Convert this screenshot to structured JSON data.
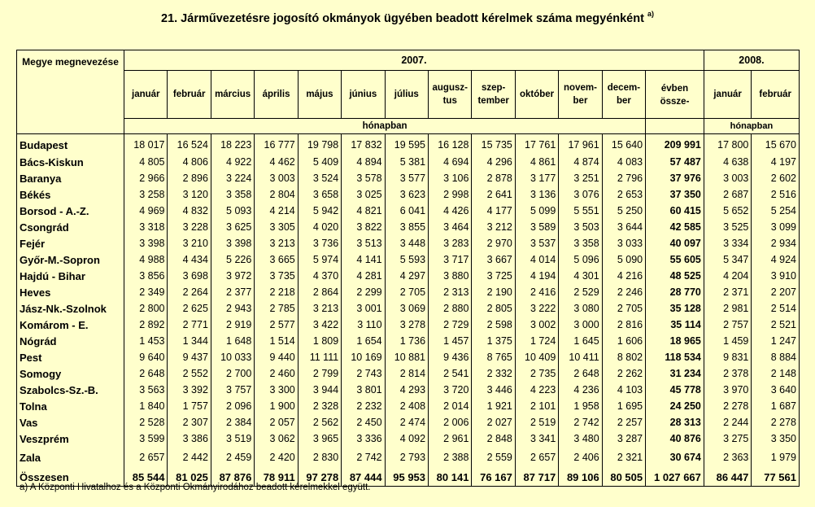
{
  "title": "21. Járművezetésre jogosító okmányok ügyében beadott kérelmek száma megyénként",
  "title_note": "a)",
  "header": {
    "county_col": "Megye megnevezése",
    "year1": "2007.",
    "year2": "2008.",
    "months_2007": [
      "január",
      "február",
      "március",
      "április",
      "május",
      "június",
      "július",
      "augusz- tus",
      "szep- tember",
      "október",
      "novem- ber",
      "decem- ber"
    ],
    "total_col": "évben össze-",
    "months_2008": [
      "január",
      "február"
    ],
    "unit": "hónapban"
  },
  "rows": [
    {
      "county": "Budapest",
      "values": [
        "18 017",
        "16 524",
        "18 223",
        "16 777",
        "19 798",
        "17 832",
        "19 595",
        "16 128",
        "15 735",
        "17 761",
        "17 961",
        "15 640"
      ],
      "total": "209 991",
      "y2008": [
        "17 800",
        "15 670"
      ]
    },
    {
      "county": "Bács-Kiskun",
      "values": [
        "4 805",
        "4 806",
        "4 922",
        "4 462",
        "5 409",
        "4 894",
        "5 381",
        "4 694",
        "4 296",
        "4 861",
        "4 874",
        "4 083"
      ],
      "total": "57 487",
      "y2008": [
        "4 638",
        "4 197"
      ]
    },
    {
      "county": "Baranya",
      "values": [
        "2 966",
        "2 896",
        "3 224",
        "3 003",
        "3 524",
        "3 578",
        "3 577",
        "3 106",
        "2 878",
        "3 177",
        "3 251",
        "2 796"
      ],
      "total": "37 976",
      "y2008": [
        "3 003",
        "2 602"
      ]
    },
    {
      "county": "Békés",
      "values": [
        "3 258",
        "3 120",
        "3 358",
        "2 804",
        "3 658",
        "3 025",
        "3 623",
        "2 998",
        "2 641",
        "3 136",
        "3 076",
        "2 653"
      ],
      "total": "37 350",
      "y2008": [
        "2 687",
        "2 516"
      ]
    },
    {
      "county": "Borsod - A.-Z.",
      "values": [
        "4 969",
        "4 832",
        "5 093",
        "4 214",
        "5 942",
        "4 821",
        "6 041",
        "4 426",
        "4 177",
        "5 099",
        "5 551",
        "5 250"
      ],
      "total": "60 415",
      "y2008": [
        "5 652",
        "5 254"
      ]
    },
    {
      "county": "Csongrád",
      "values": [
        "3 318",
        "3 228",
        "3 625",
        "3 305",
        "4 020",
        "3 822",
        "3 855",
        "3 464",
        "3 212",
        "3 589",
        "3 503",
        "3 644"
      ],
      "total": "42 585",
      "y2008": [
        "3 525",
        "3 099"
      ]
    },
    {
      "county": "Fejér",
      "values": [
        "3 398",
        "3 210",
        "3 398",
        "3 213",
        "3 736",
        "3 513",
        "3 448",
        "3 283",
        "2 970",
        "3 537",
        "3 358",
        "3 033"
      ],
      "total": "40 097",
      "y2008": [
        "3 334",
        "2 934"
      ]
    },
    {
      "county": "Győr-M.-Sopron",
      "values": [
        "4 988",
        "4 434",
        "5 226",
        "3 665",
        "5 974",
        "4 141",
        "5 593",
        "3 717",
        "3 667",
        "4 014",
        "5 096",
        "5 090"
      ],
      "total": "55 605",
      "y2008": [
        "5 347",
        "4 924"
      ]
    },
    {
      "county": "Hajdú - Bihar",
      "values": [
        "3 856",
        "3 698",
        "3 972",
        "3 735",
        "4 370",
        "4 281",
        "4 297",
        "3 880",
        "3 725",
        "4 194",
        "4 301",
        "4 216"
      ],
      "total": "48 525",
      "y2008": [
        "4 204",
        "3 910"
      ]
    },
    {
      "county": "Heves",
      "values": [
        "2 349",
        "2 264",
        "2 377",
        "2 218",
        "2 864",
        "2 299",
        "2 705",
        "2 313",
        "2 190",
        "2 416",
        "2 529",
        "2 246"
      ],
      "total": "28 770",
      "y2008": [
        "2 371",
        "2 207"
      ]
    },
    {
      "county": "Jász-Nk.-Szolnok",
      "values": [
        "2 800",
        "2 625",
        "2 943",
        "2 785",
        "3 213",
        "3 001",
        "3 069",
        "2 880",
        "2 805",
        "3 222",
        "3 080",
        "2 705"
      ],
      "total": "35 128",
      "y2008": [
        "2 981",
        "2 514"
      ]
    },
    {
      "county": "Komárom - E.",
      "values": [
        "2 892",
        "2 771",
        "2 919",
        "2 577",
        "3 422",
        "3 110",
        "3 278",
        "2 729",
        "2 598",
        "3 002",
        "3 000",
        "2 816"
      ],
      "total": "35 114",
      "y2008": [
        "2 757",
        "2 521"
      ]
    },
    {
      "county": "Nógrád",
      "values": [
        "1 453",
        "1 344",
        "1 648",
        "1 514",
        "1 809",
        "1 654",
        "1 736",
        "1 457",
        "1 375",
        "1 724",
        "1 645",
        "1 606"
      ],
      "total": "18 965",
      "y2008": [
        "1 459",
        "1 247"
      ]
    },
    {
      "county": "Pest",
      "values": [
        "9 640",
        "9 437",
        "10 033",
        "9 440",
        "11 111",
        "10 169",
        "10 881",
        "9 436",
        "8 765",
        "10 409",
        "10 411",
        "8 802"
      ],
      "total": "118 534",
      "y2008": [
        "9 831",
        "8 884"
      ]
    },
    {
      "county": "Somogy",
      "values": [
        "2 648",
        "2 552",
        "2 700",
        "2 460",
        "2 799",
        "2 743",
        "2 814",
        "2 541",
        "2 332",
        "2 735",
        "2 648",
        "2 262"
      ],
      "total": "31 234",
      "y2008": [
        "2 378",
        "2 148"
      ]
    },
    {
      "county": "Szabolcs-Sz.-B.",
      "values": [
        "3 563",
        "3 392",
        "3 757",
        "3 300",
        "3 944",
        "3 801",
        "4 293",
        "3 720",
        "3 446",
        "4 223",
        "4 236",
        "4 103"
      ],
      "total": "45 778",
      "y2008": [
        "3 970",
        "3 640"
      ]
    },
    {
      "county": "Tolna",
      "values": [
        "1 840",
        "1 757",
        "2 096",
        "1 900",
        "2 328",
        "2 232",
        "2 408",
        "2 014",
        "1 921",
        "2 101",
        "1 958",
        "1 695"
      ],
      "total": "24 250",
      "y2008": [
        "2 278",
        "1 687"
      ]
    },
    {
      "county": "Vas",
      "values": [
        "2 528",
        "2 307",
        "2 384",
        "2 057",
        "2 562",
        "2 450",
        "2 474",
        "2 006",
        "2 027",
        "2 519",
        "2 742",
        "2 257"
      ],
      "total": "28 313",
      "y2008": [
        "2 244",
        "2 278"
      ]
    },
    {
      "county": "Veszprém",
      "values": [
        "3 599",
        "3 386",
        "3 519",
        "3 062",
        "3 965",
        "3 336",
        "4 092",
        "2 961",
        "2 848",
        "3 341",
        "3 480",
        "3 287"
      ],
      "total": "40 876",
      "y2008": [
        "3 275",
        "3 350"
      ]
    },
    {
      "county": "Zala",
      "values": [
        "2 657",
        "2 442",
        "2 459",
        "2 420",
        "2 830",
        "2 742",
        "2 793",
        "2 388",
        "2 559",
        "2 657",
        "2 406",
        "2 321"
      ],
      "total": "30 674",
      "y2008": [
        "2 363",
        "1 979"
      ]
    }
  ],
  "total_row": {
    "county": "Összesen",
    "values": [
      "85 544",
      "81 025",
      "87 876",
      "78 911",
      "97 278",
      "87 444",
      "95 953",
      "80 141",
      "76 167",
      "87 717",
      "89 106",
      "80 505"
    ],
    "total": "1 027 667",
    "y2008": [
      "86 447",
      "77 561"
    ]
  },
  "footnote": "a) A Központi Hivatalhoz és a Központi Okmányirodához beadott kérelmekkel együtt."
}
